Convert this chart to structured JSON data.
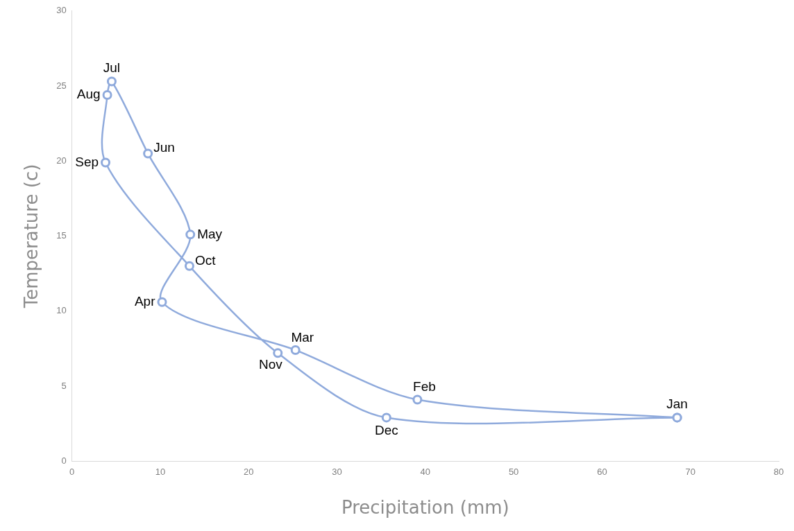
{
  "chart_data": {
    "type": "scatter",
    "xlabel": "Precipitation (mm)",
    "ylabel": "Temperature (c)",
    "xlim": [
      0,
      80
    ],
    "xticks": [
      0,
      10,
      20,
      30,
      40,
      50,
      60,
      70,
      80
    ],
    "ylim": [
      0,
      30
    ],
    "yticks": [
      0,
      5,
      10,
      15,
      20,
      25,
      30
    ],
    "grid": false,
    "legend": false,
    "marker": "circle",
    "line_style": "solid",
    "series": [
      {
        "color": "#8faadc",
        "x": [
          68.5,
          39.1,
          25.3,
          10.2,
          13.4,
          8.6,
          4.5,
          4.0,
          3.8,
          13.3,
          23.3,
          35.6,
          68.5
        ],
        "values": [
          2.9,
          4.1,
          7.4,
          10.6,
          15.1,
          20.5,
          25.3,
          24.4,
          19.9,
          13.0,
          7.2,
          2.9,
          2.9
        ],
        "value_labels": [
          "Jan",
          "Feb",
          "Mar",
          "Apr",
          "May",
          "Jun",
          "Jul",
          "Aug",
          "Sep",
          "Oct",
          "Nov",
          "Dec",
          null
        ]
      }
    ]
  }
}
